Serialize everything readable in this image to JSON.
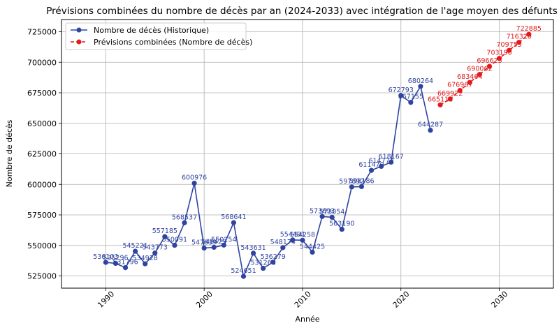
{
  "chart_data": {
    "type": "line",
    "title": "Prévisions combinées du nombre de décès par an (2024-2033) avec intégration de l'age moyen des défunts",
    "xlabel": "Année",
    "ylabel": "Nombre de décès",
    "xlim": [
      1985.5,
      2035.5
    ],
    "ylim": [
      515000,
      735000
    ],
    "xticks": [
      1990,
      2000,
      2010,
      2020,
      2030
    ],
    "yticks": [
      525000,
      550000,
      575000,
      600000,
      625000,
      650000,
      675000,
      700000,
      725000
    ],
    "grid": true,
    "legend_position": "top-left",
    "colors": {
      "historique": "#2f44a0",
      "previsions": "#e31a1c"
    },
    "series": [
      {
        "name": "Nombre de décès (Historique)",
        "style": "solid",
        "x": [
          1990,
          1991,
          1992,
          1993,
          1994,
          1995,
          1996,
          1997,
          1998,
          1999,
          2000,
          2001,
          2002,
          2003,
          2004,
          2005,
          2006,
          2007,
          2008,
          2009,
          2010,
          2011,
          2012,
          2013,
          2014,
          2015,
          2016,
          2017,
          2018,
          2019,
          2020,
          2021,
          2022,
          2023
        ],
        "y": [
          536103,
          535296,
          531796,
          545221,
          534928,
          543773,
          557185,
          550091,
          568537,
          600976,
          547839,
          548429,
          550254,
          568641,
          524651,
          543631,
          531268,
          536279,
          548174,
          554491,
          554258,
          544425,
          573693,
          573054,
          563190,
          597892,
          598186,
          611479,
          614773,
          618167,
          672793,
          667155,
          680264,
          644287
        ],
        "labels": [
          "536103",
          "535296",
          "531796",
          "545221",
          "534928",
          "543773",
          "557185",
          "550091",
          "568537",
          "600976",
          "547839",
          "548429",
          "550254",
          "568641",
          "524651",
          "543631",
          "531268",
          "536279",
          "548174",
          "554491",
          "554258",
          "544425",
          "573693",
          "573054",
          "563190",
          "597892",
          "598186",
          "611479",
          "614773",
          "618167",
          "672793",
          "667155",
          "680264",
          "644287"
        ]
      },
      {
        "name": "Prévisions combinées (Nombre de décès)",
        "style": "dashed",
        "x": [
          2024,
          2025,
          2026,
          2027,
          2028,
          2029,
          2030,
          2031,
          2032,
          2033
        ],
        "y": [
          665118,
          669922,
          676967,
          683464,
          690062,
          696625,
          703190,
          709755,
          716320,
          722885
        ],
        "labels": [
          "665118",
          "669922",
          "676967",
          "683464",
          "690062",
          "696625",
          "703190",
          "709755",
          "716320",
          "722885"
        ]
      }
    ]
  }
}
